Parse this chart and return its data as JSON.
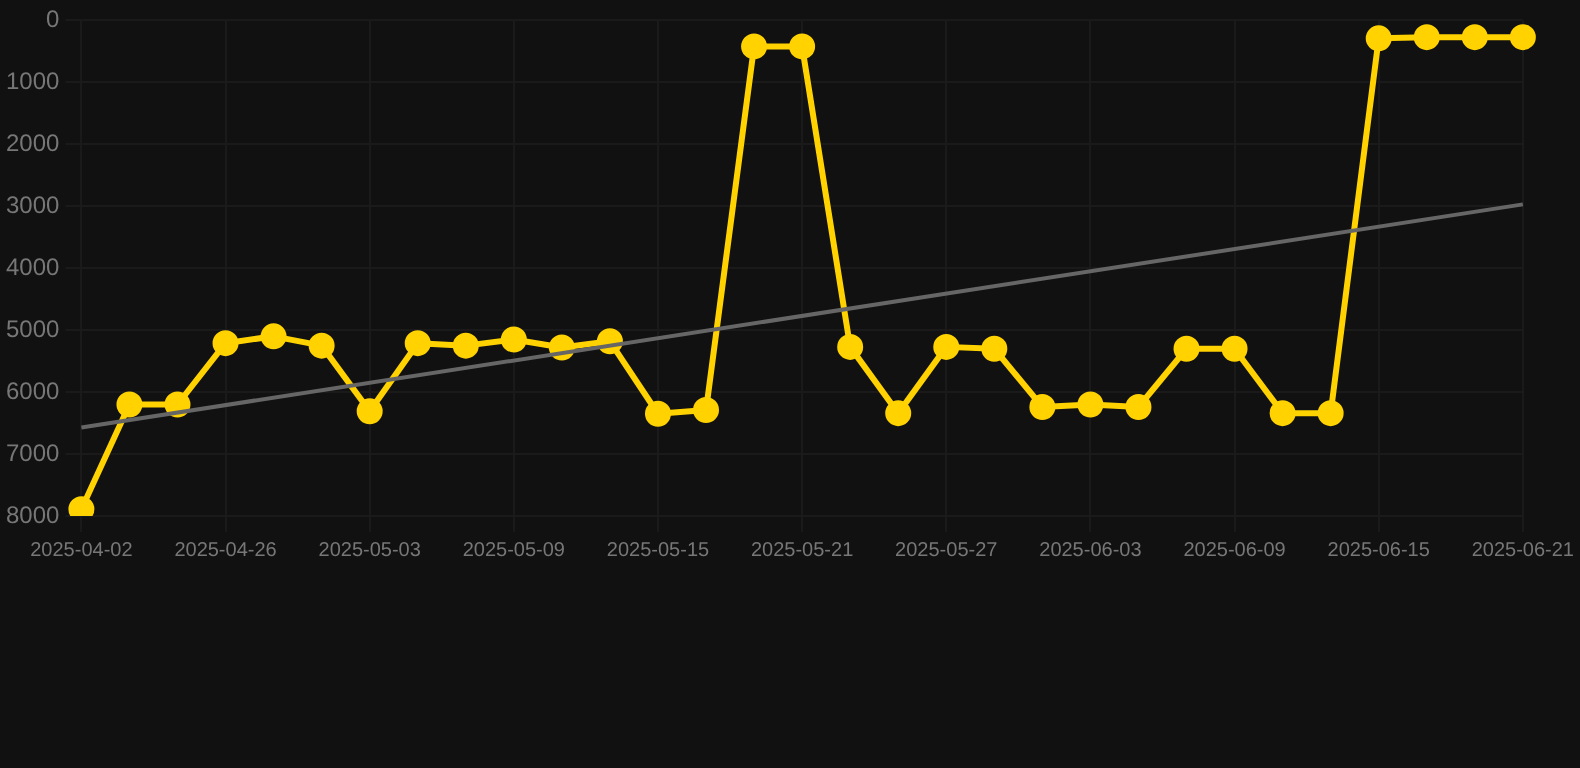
{
  "chart_data": {
    "type": "line",
    "categories": [
      "2025-04-02",
      null,
      null,
      "2025-04-26",
      null,
      null,
      "2025-05-03",
      null,
      null,
      "2025-05-09",
      null,
      null,
      "2025-05-15",
      null,
      null,
      "2025-05-21",
      null,
      null,
      "2025-05-27",
      null,
      null,
      "2025-06-03",
      null,
      null,
      "2025-06-09",
      null,
      null,
      "2025-06-15",
      null,
      null,
      "2025-06-21"
    ],
    "series": [
      {
        "type": "line",
        "color": "#ffd200",
        "marker": "circle",
        "values": [
          7890,
          6200,
          6200,
          5210,
          5100,
          5250,
          6310,
          5210,
          5250,
          5150,
          5280,
          5180,
          6350,
          6290,
          420,
          420,
          5270,
          6340,
          5270,
          5300,
          6240,
          6200,
          6240,
          5300,
          5300,
          6340,
          6340,
          290,
          270,
          270,
          270
        ]
      },
      {
        "type": "line",
        "color": "#666666",
        "marker": "none",
        "values": [
          6570,
          null,
          null,
          null,
          null,
          null,
          null,
          null,
          null,
          null,
          null,
          null,
          null,
          null,
          null,
          null,
          null,
          null,
          null,
          null,
          null,
          null,
          null,
          null,
          null,
          null,
          null,
          null,
          null,
          null,
          2970
        ]
      }
    ],
    "ylim": [
      8000,
      0
    ],
    "yticks": [
      0,
      1000,
      2000,
      3000,
      4000,
      5000,
      6000,
      7000,
      8000
    ],
    "grid": true,
    "legend": false
  }
}
